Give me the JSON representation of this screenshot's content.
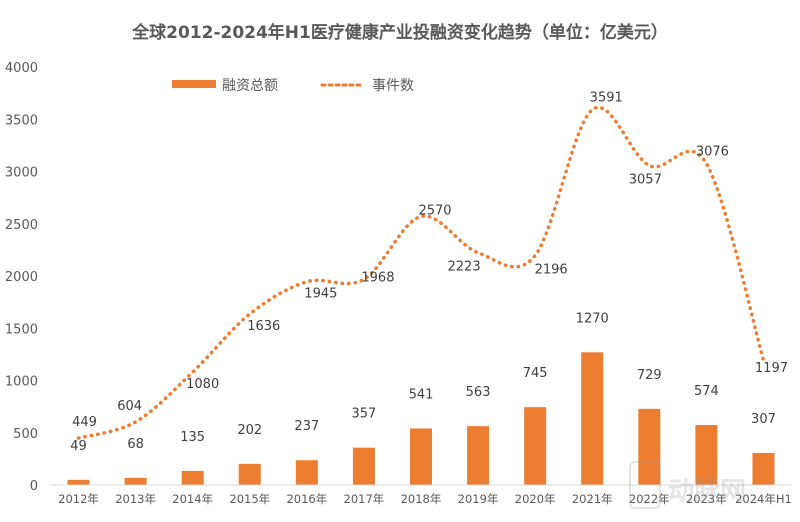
{
  "chart_data": {
    "type": "bar+line",
    "title": "全球2012-2024年H1医疗健康产业投融资变化趋势（单位：亿美元）",
    "categories": [
      "2012年",
      "2013年",
      "2014年",
      "2015年",
      "2016年",
      "2017年",
      "2018年",
      "2019年",
      "2020年",
      "2021年",
      "2022年",
      "2023年",
      "2024年H1"
    ],
    "series": [
      {
        "name": "融资总额",
        "type": "bar",
        "color": "#ED7D31",
        "values": [
          49,
          68,
          135,
          202,
          237,
          357,
          541,
          563,
          745,
          1270,
          729,
          574,
          307
        ]
      },
      {
        "name": "事件数",
        "type": "line",
        "style": "dotted",
        "color": "#ED7D31",
        "values": [
          449,
          604,
          1080,
          1636,
          1945,
          1968,
          2570,
          2223,
          2196,
          3591,
          3057,
          3076,
          1197
        ]
      }
    ],
    "ylim": [
      0,
      4000
    ],
    "yticks": [
      0,
      500,
      1000,
      1500,
      2000,
      2500,
      3000,
      3500,
      4000
    ],
    "grid": false,
    "legend": "top",
    "watermark": "动脉网"
  }
}
